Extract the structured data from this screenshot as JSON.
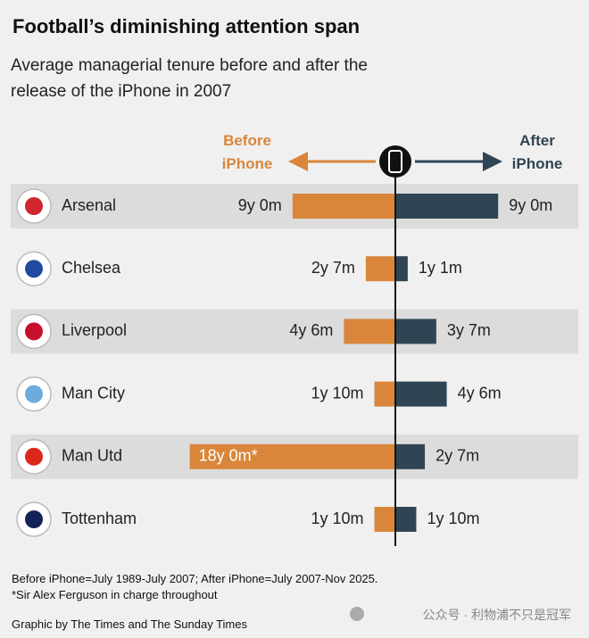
{
  "chart_data": {
    "type": "diverging-bar",
    "title": "Football’s diminishing attention span",
    "subtitle": "Average managerial tenure before and after the release of the iPhone in 2007",
    "categories": [
      "Arsenal",
      "Chelsea",
      "Liverpool",
      "Man City",
      "Man Utd",
      "Tottenham"
    ],
    "series": [
      {
        "name": "Before iPhone",
        "color": "#d9863a",
        "values": [
          9,
          2.5833,
          4.5,
          1.8333,
          18,
          1.8333
        ],
        "value_labels": [
          "9y 0m",
          "2y 7m",
          "4y 6m",
          "1y 10m",
          "18y 0m*",
          "1y 10m"
        ]
      },
      {
        "name": "After iPhone",
        "color": "#2f4553",
        "values": [
          9,
          1.0833,
          3.5833,
          4.5,
          2.5833,
          1.8333
        ],
        "value_labels": [
          "9y 0m",
          "1y 1m",
          "3y 7m",
          "4y 6m",
          "2y 7m",
          "1y 10m"
        ]
      }
    ],
    "notes": [
      "Before iPhone=July 1989-July 2007; After iPhone=July 2007-Nov 2025.",
      "*Sir Alex Ferguson in charge throughout"
    ],
    "credit": "Graphic by The Times and The Sunday Times",
    "watermark": "公众号 · 利物浦不只是冠军"
  }
}
